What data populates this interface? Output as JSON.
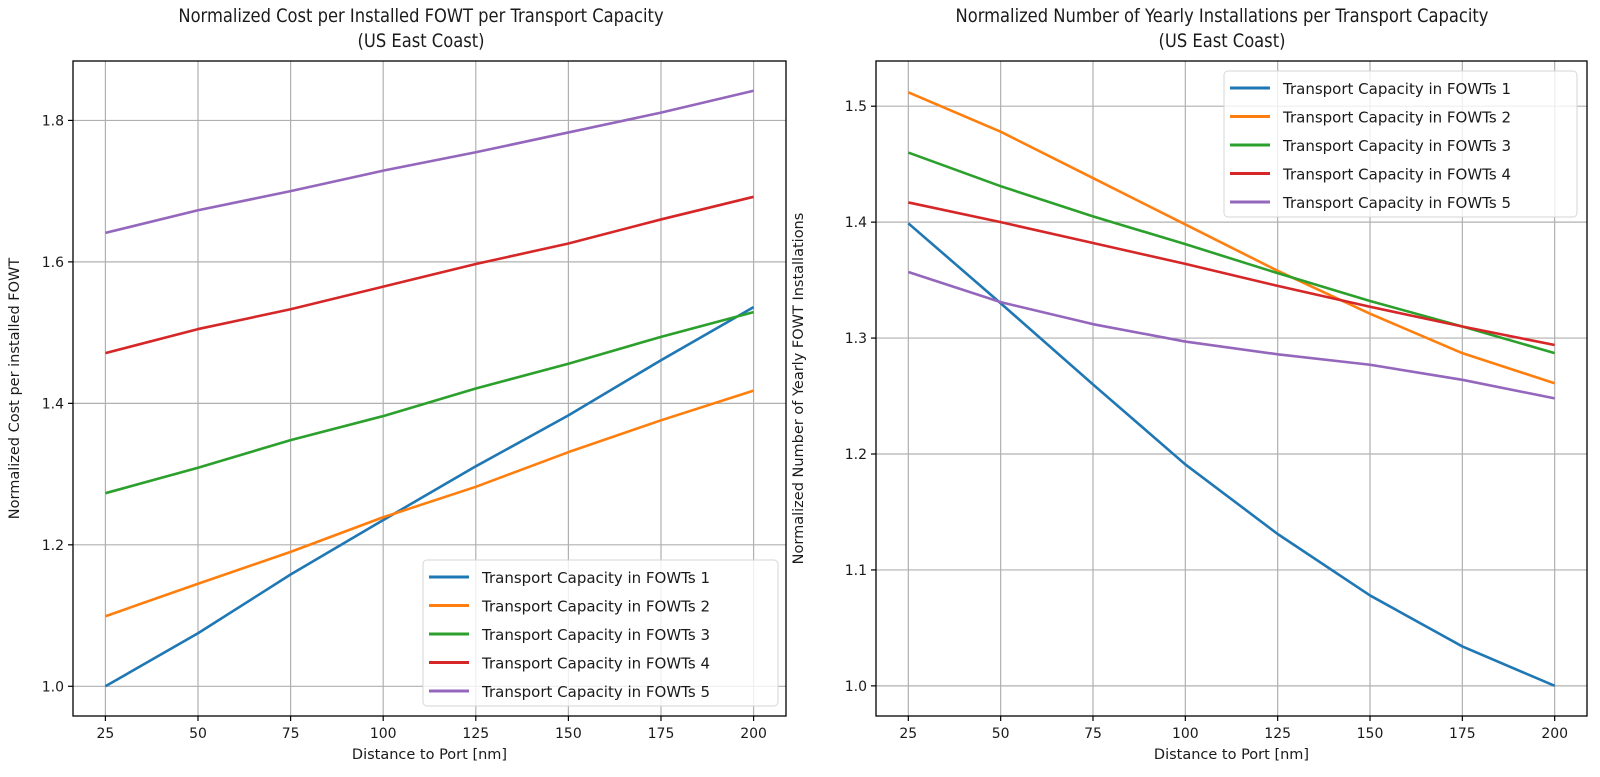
{
  "chart_data": [
    {
      "type": "line",
      "title": "Normalized Cost per Installed FOWT per Transport Capacity\n(US East Coast)",
      "title_lines": [
        "Normalized Cost per Installed FOWT per Transport Capacity",
        "(US East Coast)"
      ],
      "xlabel": "Distance to Port [nm]",
      "ylabel": "Normalized Cost per installed FOWT",
      "x": [
        25,
        50,
        75,
        100,
        125,
        150,
        175,
        200
      ],
      "xticks": [
        25,
        50,
        75,
        100,
        125,
        150,
        175,
        200
      ],
      "xtick_labels": [
        "25",
        "50",
        "75",
        "100",
        "125",
        "150",
        "175",
        "200"
      ],
      "yticks": [
        1.0,
        1.2,
        1.4,
        1.6,
        1.8
      ],
      "ytick_labels": [
        "1.0",
        "1.2",
        "1.4",
        "1.6",
        "1.8"
      ],
      "xlim": [
        16.25,
        208.75
      ],
      "ylim": [
        0.958,
        1.884
      ],
      "grid": true,
      "legend_position": "lower-right",
      "series": [
        {
          "name": "Transport Capacity in FOWTs 1",
          "color": "#1f77b4",
          "values": [
            1.0,
            1.075,
            1.158,
            1.235,
            1.311,
            1.383,
            1.461,
            1.536
          ]
        },
        {
          "name": "Transport Capacity in FOWTs 2",
          "color": "#ff7f0e",
          "values": [
            1.099,
            1.145,
            1.19,
            1.239,
            1.282,
            1.331,
            1.376,
            1.418
          ]
        },
        {
          "name": "Transport Capacity in FOWTs 3",
          "color": "#2ca02c",
          "values": [
            1.273,
            1.309,
            1.348,
            1.382,
            1.421,
            1.456,
            1.494,
            1.529
          ]
        },
        {
          "name": "Transport Capacity in FOWTs 4",
          "color": "#d62728",
          "values": [
            1.471,
            1.505,
            1.533,
            1.565,
            1.597,
            1.626,
            1.66,
            1.692
          ]
        },
        {
          "name": "Transport Capacity in FOWTs 5",
          "color": "#9467bd",
          "values": [
            1.641,
            1.673,
            1.7,
            1.729,
            1.755,
            1.783,
            1.811,
            1.842
          ]
        }
      ]
    },
    {
      "type": "line",
      "title": "Normalized Number of Yearly Installations per Transport Capacity\n(US East Coast)",
      "title_lines": [
        "Normalized Number of Yearly Installations per Transport Capacity",
        "(US East Coast)"
      ],
      "xlabel": "Distance to Port [nm]",
      "ylabel": "Normalized Number of Yearly FOWT Installations",
      "x": [
        25,
        50,
        75,
        100,
        125,
        150,
        175,
        200
      ],
      "xticks": [
        25,
        50,
        75,
        100,
        125,
        150,
        175,
        200
      ],
      "xtick_labels": [
        "25",
        "50",
        "75",
        "100",
        "125",
        "150",
        "175",
        "200"
      ],
      "yticks": [
        1.0,
        1.1,
        1.2,
        1.3,
        1.4,
        1.5
      ],
      "ytick_labels": [
        "1.0",
        "1.1",
        "1.2",
        "1.3",
        "1.4",
        "1.5"
      ],
      "xlim": [
        16.25,
        208.75
      ],
      "ylim": [
        0.974,
        1.539
      ],
      "grid": true,
      "legend_position": "upper-right",
      "series": [
        {
          "name": "Transport Capacity in FOWTs 1",
          "color": "#1f77b4",
          "values": [
            1.399,
            1.33,
            1.26,
            1.191,
            1.131,
            1.078,
            1.034,
            1.0
          ]
        },
        {
          "name": "Transport Capacity in FOWTs 2",
          "color": "#ff7f0e",
          "values": [
            1.512,
            1.478,
            1.438,
            1.398,
            1.358,
            1.321,
            1.287,
            1.261
          ]
        },
        {
          "name": "Transport Capacity in FOWTs 3",
          "color": "#2ca02c",
          "values": [
            1.46,
            1.431,
            1.405,
            1.381,
            1.356,
            1.332,
            1.31,
            1.287
          ]
        },
        {
          "name": "Transport Capacity in FOWTs 4",
          "color": "#d62728",
          "values": [
            1.417,
            1.4,
            1.382,
            1.364,
            1.345,
            1.327,
            1.31,
            1.294
          ]
        },
        {
          "name": "Transport Capacity in FOWTs 5",
          "color": "#9467bd",
          "values": [
            1.357,
            1.331,
            1.312,
            1.297,
            1.286,
            1.277,
            1.264,
            1.248
          ]
        }
      ]
    }
  ]
}
